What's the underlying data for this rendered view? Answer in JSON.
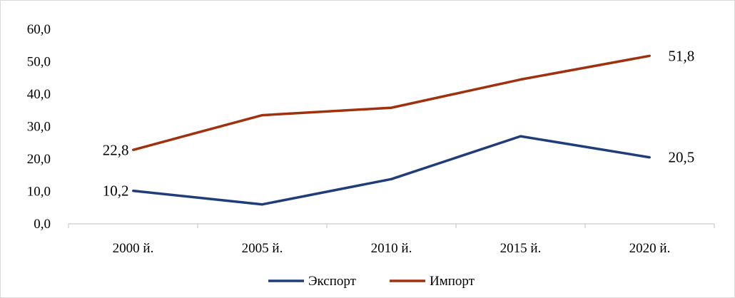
{
  "chart_data": {
    "type": "line",
    "title": "",
    "xlabel": "",
    "ylabel": "",
    "categories": [
      "2000 й.",
      "2005 й.",
      "2010 й.",
      "2015 й.",
      "2020 й."
    ],
    "ylim": [
      0,
      60
    ],
    "yticks": [
      "0,0",
      "10,0",
      "20,0",
      "30,0",
      "40,0",
      "50,0",
      "60,0"
    ],
    "grid": false,
    "legend_position": "bottom",
    "series": [
      {
        "name": "Экспорт",
        "color": "#1f3d7a",
        "values": [
          10.2,
          6.0,
          13.8,
          27.0,
          20.5
        ],
        "labels": [
          "10,2",
          "",
          "",
          "",
          "20,5"
        ]
      },
      {
        "name": "Импорт",
        "color": "#a0310e",
        "values": [
          22.8,
          33.5,
          35.8,
          44.5,
          51.8
        ],
        "labels": [
          "22,8",
          "",
          "",
          "",
          "51,8"
        ]
      }
    ]
  }
}
